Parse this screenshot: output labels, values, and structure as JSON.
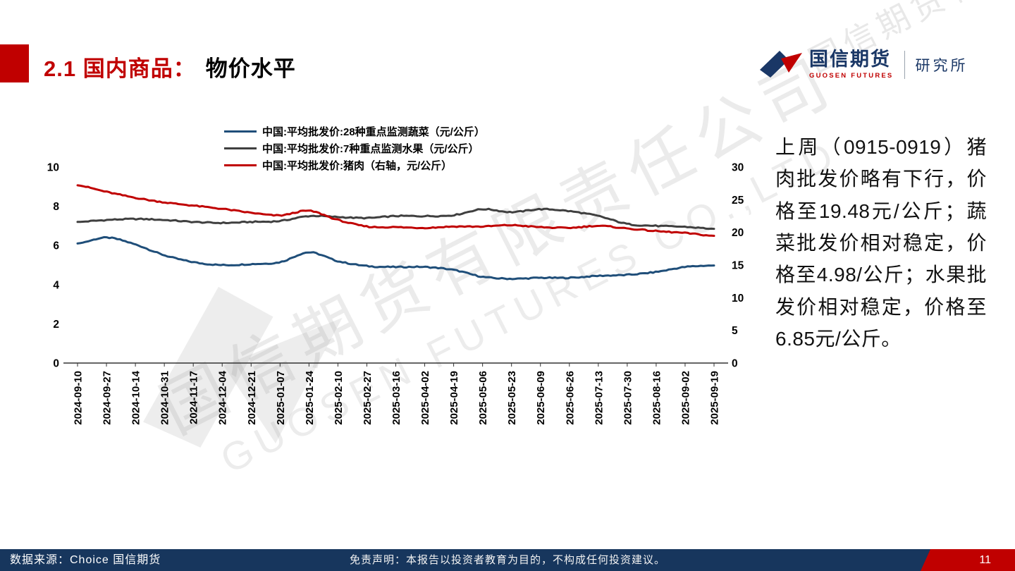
{
  "slide": {
    "title_red": "2.1 国内商品：",
    "title_black": "物价水平"
  },
  "logo": {
    "name_cn": "国信期货",
    "name_en": "GUOSEN FUTURES",
    "dept": "研究所"
  },
  "watermark": {
    "line1": "国信期货有限责任公司",
    "line2": "GUOSEN FUTURES CO.,LTD"
  },
  "commentary": {
    "text": "上周（0915-0919）猪肉批发价略有下行，价格至19.48元/公斤；蔬菜批发价相对稳定，价格至4.98/公斤；水果批发价相对稳定，价格至6.85元/公斤。"
  },
  "footer": {
    "source": "数据来源：Choice  国信期货",
    "disclaimer": "免责声明：本报告以投资者教育为目的，不构成任何投资建议。",
    "page": "11"
  },
  "chart_data": {
    "type": "line",
    "title": "",
    "legend_position": "top",
    "grid": false,
    "x_labels": [
      "2024-09-10",
      "2024-09-27",
      "2024-10-14",
      "2024-10-31",
      "2024-11-17",
      "2024-12-04",
      "2024-12-21",
      "2025-01-07",
      "2025-01-24",
      "2025-02-10",
      "2025-02-27",
      "2025-03-16",
      "2025-04-02",
      "2025-04-19",
      "2025-05-06",
      "2025-05-23",
      "2025-06-09",
      "2025-06-26",
      "2025-07-13",
      "2025-07-30",
      "2025-08-16",
      "2025-09-02",
      "2025-09-19"
    ],
    "left_axis": {
      "range": [
        0,
        10
      ],
      "ticks": [
        0,
        2,
        4,
        6,
        8,
        10
      ]
    },
    "right_axis": {
      "range": [
        0,
        30
      ],
      "ticks": [
        0,
        5,
        10,
        15,
        20,
        25,
        30
      ]
    },
    "series": [
      {
        "name": "中国:平均批发价:28种重点监测蔬菜（元/公斤）",
        "color": "#1f4e79",
        "axis": "left",
        "values": [
          6.1,
          6.4,
          6.05,
          5.5,
          5.15,
          5.0,
          5.05,
          5.15,
          5.65,
          5.2,
          4.95,
          4.9,
          4.9,
          4.75,
          4.4,
          4.3,
          4.35,
          4.35,
          4.45,
          4.5,
          4.65,
          4.9,
          4.98
        ]
      },
      {
        "name": "中国:平均批发价:7种重点监测水果（元/公斤）",
        "color": "#3f3f3f",
        "axis": "left",
        "values": [
          7.2,
          7.3,
          7.35,
          7.3,
          7.2,
          7.15,
          7.2,
          7.25,
          7.5,
          7.45,
          7.4,
          7.5,
          7.5,
          7.55,
          7.85,
          7.7,
          7.85,
          7.75,
          7.5,
          7.1,
          7.0,
          6.95,
          6.85
        ]
      },
      {
        "name": "中国:平均批发价:猪肉（右轴，元/公斤）",
        "color": "#c00000",
        "axis": "right",
        "values": [
          27.2,
          26.2,
          25.3,
          24.6,
          24.1,
          23.6,
          23.0,
          22.6,
          23.3,
          21.9,
          20.9,
          20.8,
          20.7,
          20.9,
          20.9,
          21.1,
          20.8,
          20.7,
          21.0,
          20.6,
          20.2,
          19.9,
          19.48
        ]
      }
    ]
  }
}
